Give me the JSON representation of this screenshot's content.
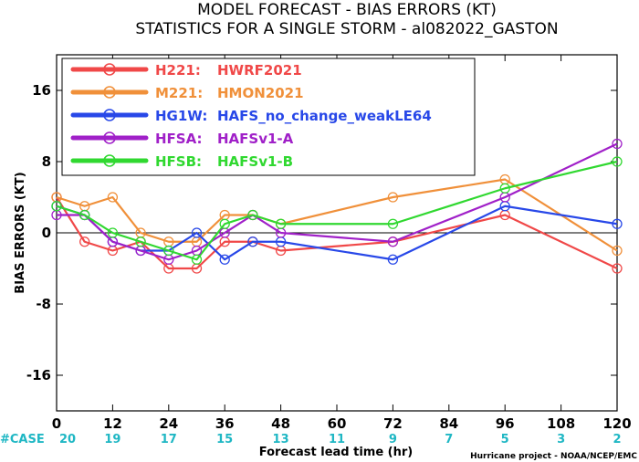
{
  "chart_data": {
    "type": "line",
    "title": "MODEL FORECAST - BIAS ERRORS (KT)",
    "subtitle": "STATISTICS FOR A SINGLE STORM - al082022_GASTON",
    "xlabel": "Forecast lead time (hr)",
    "ylabel": "BIAS ERRORS (KT)",
    "xlim": [
      0,
      120
    ],
    "ylim": [
      -20,
      20
    ],
    "x_ticks": [
      0,
      12,
      24,
      36,
      48,
      60,
      72,
      84,
      96,
      108,
      120
    ],
    "y_ticks": [
      -16,
      -8,
      0,
      8,
      16
    ],
    "grid": false,
    "zero_line": true,
    "legend_position": "top-left",
    "case_label": "#CASE",
    "case_counts": [
      20,
      19,
      17,
      15,
      13,
      11,
      9,
      7,
      5,
      3,
      2
    ],
    "credit": "Hurricane project - NOAA/NCEP/EMC",
    "series": [
      {
        "code": "H221:",
        "name": "HWRF2021",
        "color": "#f04848",
        "x": [
          0,
          6,
          12,
          18,
          24,
          30,
          36,
          42,
          48,
          72,
          96,
          120
        ],
        "y": [
          4,
          -1,
          -2,
          -1,
          -4,
          -4,
          -1,
          -1,
          -2,
          -1,
          2,
          -4
        ]
      },
      {
        "code": "M221:",
        "name": "HMON2021",
        "color": "#f0903a",
        "x": [
          0,
          6,
          12,
          18,
          24,
          30,
          36,
          42,
          48,
          72,
          96,
          120
        ],
        "y": [
          4,
          3,
          4,
          0,
          -1,
          -1,
          2,
          2,
          1,
          4,
          6,
          -2
        ]
      },
      {
        "code": "HG1W:",
        "name": "HAFS_no_change_weakLE64",
        "color": "#2848e8",
        "x": [
          0,
          6,
          12,
          18,
          24,
          30,
          36,
          42,
          48,
          72,
          96,
          120
        ],
        "y": [
          3,
          2,
          -1,
          -2,
          -2,
          0,
          -3,
          -1,
          -1,
          -3,
          3,
          1
        ]
      },
      {
        "code": "HFSA:",
        "name": "HAFSv1-A",
        "color": "#a020c8",
        "x": [
          0,
          6,
          12,
          18,
          24,
          30,
          36,
          42,
          48,
          72,
          96,
          120
        ],
        "y": [
          2,
          2,
          -1,
          -2,
          -3,
          -2,
          0,
          2,
          0,
          -1,
          4,
          10
        ]
      },
      {
        "code": "HFSB:",
        "name": "HAFSv1-B",
        "color": "#30d830",
        "x": [
          0,
          6,
          12,
          18,
          24,
          30,
          36,
          42,
          48,
          72,
          96,
          120
        ],
        "y": [
          3,
          2,
          0,
          -1,
          -2,
          -3,
          1,
          2,
          1,
          1,
          5,
          8
        ]
      }
    ]
  }
}
